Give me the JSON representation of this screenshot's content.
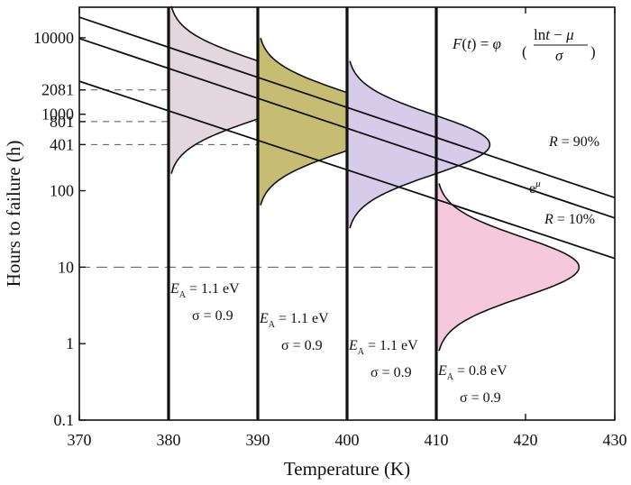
{
  "chart_data": {
    "type": "line",
    "xlabel": "Temperature (K)",
    "ylabel": "Hours to failure (h)",
    "xlim": [
      370,
      430
    ],
    "ylim_log10": [
      -1,
      4.4
    ],
    "y_scale": "log",
    "x_ticks": [
      "370",
      "380",
      "390",
      "400",
      "410",
      "420",
      "430"
    ],
    "y_ticks": [
      {
        "value": 0.1,
        "label": "0.1"
      },
      {
        "value": 1,
        "label": "1"
      },
      {
        "value": 10,
        "label": "10"
      },
      {
        "value": 100,
        "label": "100"
      },
      {
        "value": 401,
        "label": "401"
      },
      {
        "value": 801,
        "label": "801"
      },
      {
        "value": 1000,
        "label": "1000"
      },
      {
        "value": 2081,
        "label": "2081"
      },
      {
        "value": 10000,
        "label": "10000"
      }
    ],
    "series": [
      {
        "name": "R = 90%",
        "x": [
          370,
          430
        ],
        "y": [
          18600,
          81
        ]
      },
      {
        "name": "eμ",
        "x": [
          370,
          430
        ],
        "y": [
          9800,
          44
        ]
      },
      {
        "name": "R = 10%",
        "x": [
          370,
          430
        ],
        "y": [
          2700,
          13
        ]
      }
    ],
    "reference_lines": [
      {
        "y": 2081,
        "x_end": 380
      },
      {
        "y": 801,
        "x_end": 390
      },
      {
        "y": 401,
        "x_end": 400
      },
      {
        "y": 10,
        "x_end": 410
      }
    ],
    "distributions": [
      {
        "temperature": 380,
        "mode_hours": 2081,
        "ea_label": "E",
        "ea_sub": "A",
        "ea_value": " = 1.1 eV",
        "sigma_label": "σ = 0.9",
        "color": "#e3d6dc"
      },
      {
        "temperature": 390,
        "mode_hours": 801,
        "ea_label": "E",
        "ea_sub": "A",
        "ea_value": " = 1.1 eV",
        "sigma_label": "σ = 0.9",
        "color": "#c7bd72"
      },
      {
        "temperature": 400,
        "mode_hours": 401,
        "ea_label": "E",
        "ea_sub": "A",
        "ea_value": " = 1.1 eV",
        "sigma_label": "σ = 0.9",
        "color": "#d6cbe9"
      },
      {
        "temperature": 410,
        "mode_hours": 10,
        "ea_label": "E",
        "ea_sub": "A",
        "ea_value": " = 0.8 eV",
        "sigma_label": "σ = 0.9",
        "color": "#f6c8db"
      }
    ],
    "line_labels": {
      "r90": "R = 90%",
      "emu": "eμ",
      "r10": "R = 10%"
    },
    "formula": "F(t) = φ( (lnt − μ) / σ )",
    "grid": false
  }
}
